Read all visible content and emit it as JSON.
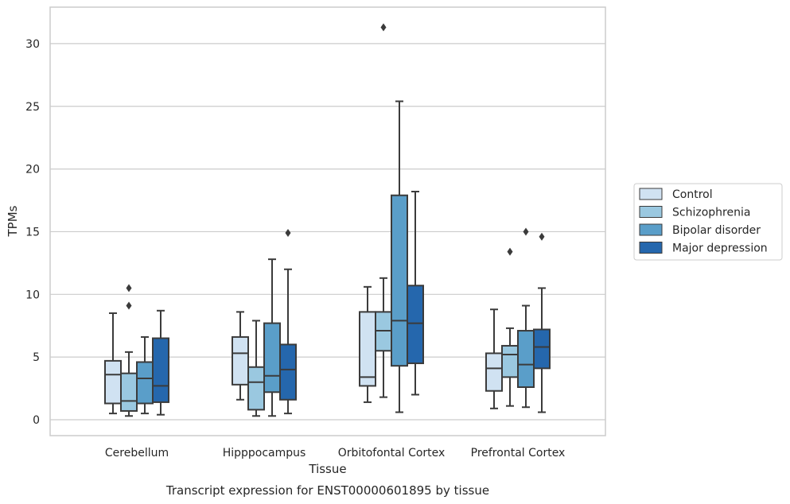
{
  "caption": "Transcript expression for ENST00000601895 by tissue",
  "chart_data": {
    "type": "box",
    "xlabel": "Tissue",
    "ylabel": "TPMs",
    "ylim": [
      -1.2,
      33
    ],
    "yticks": [
      0,
      5,
      10,
      15,
      20,
      25,
      30
    ],
    "grid": "horizontal",
    "legend_position": "right",
    "categories": [
      "Cerebellum",
      "Hipppocampus",
      "Orbitofontal Cortex",
      "Prefrontal Cortex"
    ],
    "series": [
      {
        "name": "Control",
        "color": "#d0e2f2",
        "boxes": [
          {
            "whisker_low": 0.5,
            "q1": 1.3,
            "median": 3.6,
            "q3": 4.7,
            "whisker_high": 8.5,
            "outliers": []
          },
          {
            "whisker_low": 1.6,
            "q1": 2.8,
            "median": 5.3,
            "q3": 6.6,
            "whisker_high": 8.6,
            "outliers": []
          },
          {
            "whisker_low": 1.4,
            "q1": 2.7,
            "median": 3.4,
            "q3": 8.6,
            "whisker_high": 10.6,
            "outliers": []
          },
          {
            "whisker_low": 0.9,
            "q1": 2.3,
            "median": 4.1,
            "q3": 5.3,
            "whisker_high": 8.8,
            "outliers": []
          }
        ]
      },
      {
        "name": "Schizophrenia",
        "color": "#9ac8e0",
        "boxes": [
          {
            "whisker_low": 0.3,
            "q1": 0.7,
            "median": 1.5,
            "q3": 3.7,
            "whisker_high": 5.4,
            "outliers": [
              9.1,
              10.5
            ]
          },
          {
            "whisker_low": 0.3,
            "q1": 0.8,
            "median": 3.0,
            "q3": 4.2,
            "whisker_high": 7.9,
            "outliers": []
          },
          {
            "whisker_low": 1.8,
            "q1": 5.5,
            "median": 7.1,
            "q3": 8.6,
            "whisker_high": 11.3,
            "outliers": [
              31.3
            ]
          },
          {
            "whisker_low": 1.1,
            "q1": 3.4,
            "median": 5.2,
            "q3": 5.9,
            "whisker_high": 7.3,
            "outliers": [
              13.4
            ]
          }
        ]
      },
      {
        "name": "Bipolar disorder",
        "color": "#5a9ec9",
        "boxes": [
          {
            "whisker_low": 0.5,
            "q1": 1.3,
            "median": 3.3,
            "q3": 4.6,
            "whisker_high": 6.6,
            "outliers": []
          },
          {
            "whisker_low": 0.3,
            "q1": 2.2,
            "median": 3.5,
            "q3": 7.7,
            "whisker_high": 12.8,
            "outliers": []
          },
          {
            "whisker_low": 0.6,
            "q1": 4.3,
            "median": 7.9,
            "q3": 17.9,
            "whisker_high": 25.4,
            "outliers": []
          },
          {
            "whisker_low": 1.0,
            "q1": 2.6,
            "median": 4.4,
            "q3": 7.1,
            "whisker_high": 9.1,
            "outliers": [
              15.0
            ]
          }
        ]
      },
      {
        "name": "Major depression",
        "color": "#2567ad",
        "boxes": [
          {
            "whisker_low": 0.4,
            "q1": 1.4,
            "median": 2.7,
            "q3": 6.5,
            "whisker_high": 8.7,
            "outliers": []
          },
          {
            "whisker_low": 0.5,
            "q1": 1.6,
            "median": 4.0,
            "q3": 6.0,
            "whisker_high": 12.0,
            "outliers": [
              14.9
            ]
          },
          {
            "whisker_low": 2.0,
            "q1": 4.5,
            "median": 7.7,
            "q3": 10.7,
            "whisker_high": 18.2,
            "outliers": []
          },
          {
            "whisker_low": 0.6,
            "q1": 4.1,
            "median": 5.8,
            "q3": 7.2,
            "whisker_high": 10.5,
            "outliers": [
              14.6
            ]
          }
        ]
      }
    ]
  }
}
